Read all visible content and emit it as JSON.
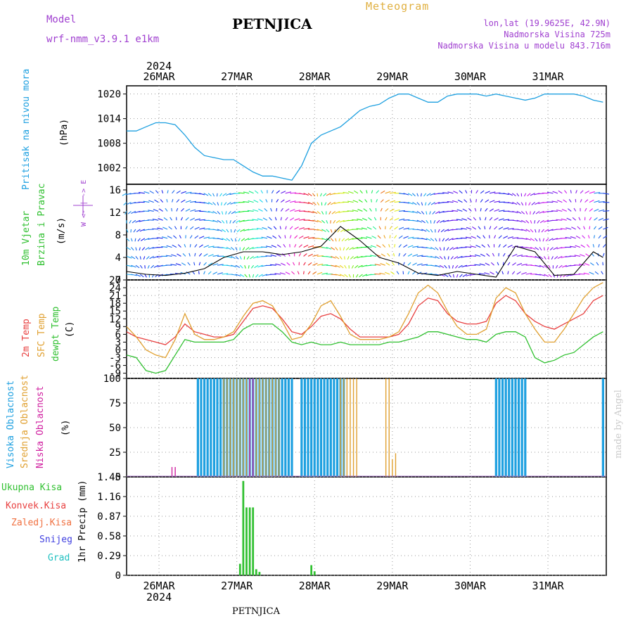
{
  "header": {
    "model_label": "Model",
    "model_name": "wrf-nmm_v3.9.1 e1km",
    "station": "PETNJICA",
    "meteogram": "Meteogram",
    "lonlat": "lon,lat (19.9625E, 42.9N)",
    "altitude": "Nadmorska Visina 725m",
    "model_altitude": "Nadmorska Visina u modelu 843.716m",
    "footer_station": "PETNJICA",
    "watermark": "made by Angel"
  },
  "time_axis": {
    "days": [
      "26MAR",
      "27MAR",
      "28MAR",
      "29MAR",
      "30MAR",
      "31MAR"
    ],
    "year": "2024"
  },
  "colors": {
    "pressure": "#1ea0e0",
    "temp2m": "#e84040",
    "sfc": "#e0a030",
    "dewpt": "#30c030",
    "high_cloud": "#1ea0e0",
    "mid_cloud": "#e0a030",
    "low_cloud": "#d020a0",
    "precip": "#30c030"
  },
  "chart_data": [
    {
      "type": "line",
      "name": "pressure",
      "ylabel_1": "Pritisak na nivou mora",
      "ylabel_2": "(hPa)",
      "ylim": [
        998,
        1022
      ],
      "yticks": [
        "1020",
        "1014",
        "1008",
        "1002"
      ],
      "x": [
        0,
        3,
        6,
        9,
        12,
        15,
        18,
        21,
        24,
        27,
        30,
        33,
        36,
        39,
        42,
        45,
        48,
        51,
        54,
        57,
        60,
        63,
        66,
        69,
        72,
        75,
        78,
        81,
        84,
        87,
        90,
        93,
        96,
        99,
        102,
        105,
        108,
        111,
        114,
        117,
        120,
        123,
        126,
        129,
        132,
        135,
        138,
        141,
        144,
        147
      ],
      "values": [
        1011,
        1011,
        1012,
        1013,
        1013,
        1012.5,
        1010,
        1007,
        1005,
        1004.5,
        1004,
        1004,
        1002.5,
        1001,
        1000,
        1000,
        999.5,
        999,
        1002.5,
        1008,
        1010,
        1011,
        1012,
        1014,
        1016,
        1017,
        1017.5,
        1019,
        1020,
        1020,
        1019,
        1018,
        1018,
        1019.5,
        1020,
        1020,
        1020,
        1019.5,
        1020,
        1019.5,
        1019,
        1018.5,
        1019,
        1020,
        1020,
        1020,
        1020,
        1019.5,
        1018.5,
        1018
      ]
    },
    {
      "type": "line",
      "name": "wind",
      "ylabel_1": "10m Vjetar",
      "ylabel_2": "Brzina i Pravac",
      "ylabel_3": "(m/s)",
      "legend_note": "W <- | -> E",
      "ylim": [
        0,
        17
      ],
      "yticks": [
        "16",
        "12",
        "8",
        "4",
        "0"
      ],
      "x": [
        0,
        6,
        12,
        18,
        24,
        30,
        36,
        42,
        48,
        54,
        60,
        66,
        72,
        78,
        84,
        90,
        96,
        102,
        108,
        114,
        120,
        126,
        132,
        138,
        144,
        147
      ],
      "values": [
        1.5,
        1,
        0.8,
        1.2,
        2,
        4,
        5,
        5,
        4.5,
        5,
        6,
        9.5,
        7,
        4,
        3,
        1.2,
        0.8,
        1.5,
        1,
        0.5,
        6,
        5,
        0.8,
        1,
        5,
        4
      ]
    },
    {
      "type": "line",
      "name": "temperature",
      "ylabel_1": "2m Temp",
      "ylabel_2": "SFC Temp",
      "ylabel_3": "dewpt Temp",
      "ylabel_4": "(C)",
      "ylim": [
        -11,
        27
      ],
      "yticks": [
        "27",
        "24",
        "21",
        "18",
        "15",
        "12",
        "9",
        "6",
        "3",
        "0",
        "-3",
        "-6",
        "-9"
      ],
      "x": [
        0,
        3,
        6,
        9,
        12,
        15,
        18,
        21,
        24,
        27,
        30,
        33,
        36,
        39,
        42,
        45,
        48,
        51,
        54,
        57,
        60,
        63,
        66,
        69,
        72,
        75,
        78,
        81,
        84,
        87,
        90,
        93,
        96,
        99,
        102,
        105,
        108,
        111,
        114,
        117,
        120,
        123,
        126,
        129,
        132,
        135,
        138,
        141,
        144,
        147
      ],
      "series": [
        {
          "name": "2m Temp",
          "values": [
            7,
            5,
            4,
            3,
            2,
            5,
            10,
            7,
            6,
            5,
            5,
            6,
            11,
            16,
            17,
            16,
            12,
            7,
            6,
            9,
            13,
            14,
            12,
            8,
            5,
            5,
            5,
            5,
            6,
            10,
            17,
            20,
            19,
            14,
            11,
            10,
            10,
            11,
            18,
            21,
            19,
            14,
            11,
            9,
            8,
            10,
            12,
            14,
            19,
            21
          ]
        },
        {
          "name": "SFC Temp",
          "values": [
            9,
            5,
            0,
            -2,
            -3,
            4,
            14,
            6,
            4,
            4,
            5,
            7,
            13,
            18,
            19,
            17,
            11,
            4,
            5,
            10,
            17,
            19,
            13,
            6,
            4,
            4,
            4,
            5,
            7,
            14,
            22,
            25,
            22,
            15,
            9,
            6,
            6,
            8,
            20,
            24,
            22,
            14,
            8,
            3,
            3,
            8,
            14,
            20,
            24,
            26
          ]
        },
        {
          "name": "dewpt Temp",
          "values": [
            -2,
            -3,
            -8,
            -9,
            -8,
            -2,
            4,
            3,
            3,
            3,
            3,
            4,
            8,
            10,
            10,
            10,
            7,
            3,
            2,
            3,
            2,
            2,
            3,
            2,
            2,
            2,
            2,
            3,
            3,
            4,
            5,
            7,
            7,
            6,
            5,
            4,
            4,
            3,
            6,
            7,
            7,
            5,
            -3,
            -5,
            -4,
            -2,
            -1,
            2,
            5,
            7
          ]
        }
      ]
    },
    {
      "type": "bar",
      "name": "clouds",
      "ylabel_1": "Visoka Oblacnost",
      "ylabel_2": "Srednja Oblacnost",
      "ylabel_3": "Niska Oblacnost",
      "ylabel_4": "(%)",
      "ylim": [
        0,
        100
      ],
      "yticks": [
        "100",
        "75",
        "50",
        "25",
        "0"
      ],
      "series": [
        {
          "name": "Visoka Oblacnost",
          "x": [
            22,
            23,
            24,
            25,
            26,
            27,
            28,
            29,
            30,
            31,
            32,
            33,
            34,
            35,
            36,
            37,
            38,
            39,
            40,
            41,
            42,
            43,
            44,
            45,
            46,
            47,
            48,
            49,
            50,
            51,
            54,
            55,
            56,
            57,
            58,
            59,
            60,
            61,
            62,
            63,
            64,
            65,
            66,
            67,
            114,
            115,
            116,
            117,
            118,
            119,
            120,
            121,
            122,
            123,
            147
          ],
          "values": [
            100,
            100,
            100,
            100,
            100,
            100,
            100,
            100,
            100,
            100,
            100,
            100,
            100,
            100,
            100,
            100,
            100,
            100,
            100,
            100,
            100,
            100,
            100,
            100,
            100,
            100,
            100,
            100,
            100,
            100,
            100,
            100,
            100,
            100,
            100,
            100,
            100,
            100,
            100,
            100,
            100,
            100,
            100,
            100,
            100,
            100,
            100,
            100,
            100,
            100,
            100,
            100,
            100,
            100,
            100
          ]
        },
        {
          "name": "Srednja Oblacnost",
          "x": [
            30,
            31,
            32,
            33,
            34,
            35,
            36,
            37,
            38,
            39,
            40,
            41,
            42,
            43,
            44,
            45,
            46,
            47,
            66,
            67,
            68,
            69,
            70,
            71,
            80,
            81,
            82,
            83
          ],
          "values": [
            100,
            100,
            100,
            100,
            100,
            100,
            100,
            100,
            100,
            100,
            100,
            100,
            100,
            100,
            100,
            100,
            100,
            100,
            100,
            100,
            100,
            100,
            100,
            100,
            100,
            100,
            18,
            24
          ]
        },
        {
          "name": "Niska Oblacnost",
          "x": [
            14,
            15,
            38,
            39
          ],
          "values": [
            10,
            10,
            100,
            100
          ]
        }
      ]
    },
    {
      "type": "bar",
      "name": "precip",
      "ylabel_1": "Ukupna Kisa",
      "ylabel_2": "Konvek.Kisa",
      "ylabel_3": "Zaledj.Kisa",
      "ylabel_4": "Snijeg",
      "ylabel_5": "Grad",
      "ylabel_6": "1hr Precip (mm)",
      "ylim": [
        0,
        1.45
      ],
      "yticks": [
        "1.45",
        "1.16",
        "0.87",
        "0.58",
        "0.29",
        "0"
      ],
      "x": [
        35,
        36,
        37,
        38,
        39,
        40,
        41,
        57,
        58
      ],
      "values": [
        0.17,
        1.39,
        1.0,
        1.0,
        1.0,
        0.09,
        0.05,
        0.15,
        0.06
      ]
    }
  ]
}
